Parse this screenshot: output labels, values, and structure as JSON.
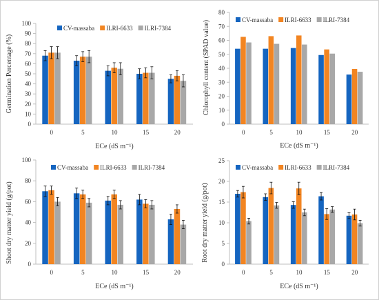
{
  "colors": {
    "series": [
      "#1565c0",
      "#f28522",
      "#a8a8a8"
    ],
    "axis": "#bfbfbf",
    "error_bar": "#111111",
    "frame": "#d0d0d0"
  },
  "chart_data": [
    {
      "type": "bar",
      "title": "",
      "xlabel": "ECe (dS m⁻¹)",
      "ylabel": "Germination Percentage (%)",
      "categories": [
        "0",
        "5",
        "10",
        "15",
        "20"
      ],
      "ylim": [
        0,
        100
      ],
      "yticks": [
        "0",
        "10",
        "20",
        "30",
        "40",
        "50",
        "60",
        "70",
        "80",
        "90",
        "100"
      ],
      "legend_position": "top",
      "error_bars": true,
      "series": [
        {
          "name": "CV-massaba",
          "values": [
            68,
            63,
            53,
            50,
            45
          ],
          "errors": [
            5,
            5,
            5,
            5,
            4
          ]
        },
        {
          "name": "ILRI-6633",
          "values": [
            71,
            67,
            56,
            51,
            48
          ],
          "errors": [
            6,
            5,
            5,
            5,
            5
          ]
        },
        {
          "name": "ILRI-7384",
          "values": [
            71,
            67,
            55,
            51,
            43
          ],
          "errors": [
            6,
            6,
            6,
            6,
            6
          ]
        }
      ]
    },
    {
      "type": "bar",
      "title": "",
      "xlabel": "ECe (dS m⁻¹)",
      "ylabel": "Chlorophyll content (SPAD value)",
      "categories": [
        "0",
        "5",
        "10",
        "15",
        "20"
      ],
      "ylim": [
        0,
        80
      ],
      "yticks": [
        "0",
        "10",
        "20",
        "30",
        "40",
        "50",
        "60",
        "70",
        "80"
      ],
      "legend_position": "top",
      "error_bars": false,
      "series": [
        {
          "name": "CV-massaba",
          "values": [
            54,
            54,
            54.5,
            49.5,
            35.5
          ]
        },
        {
          "name": "ILRI-6633",
          "values": [
            62.5,
            63,
            63.5,
            53.5,
            39.5
          ]
        },
        {
          "name": "ILRI-7384",
          "values": [
            58.5,
            57.5,
            57,
            50.5,
            37.5
          ]
        }
      ]
    },
    {
      "type": "bar",
      "title": "",
      "xlabel": "ECe (dS m⁻¹)",
      "ylabel": "Shoot dry matter yield (g/pot)",
      "categories": [
        "0",
        "5",
        "10",
        "15",
        "20"
      ],
      "ylim": [
        0,
        100
      ],
      "yticks": [
        "0",
        "20",
        "40",
        "60",
        "80",
        "100"
      ],
      "legend_position": "top",
      "error_bars": true,
      "series": [
        {
          "name": "CV-massaba",
          "values": [
            70,
            68,
            61,
            62,
            43
          ],
          "errors": [
            5,
            5,
            4,
            5,
            5
          ]
        },
        {
          "name": "ILRI-6633",
          "values": [
            71,
            67,
            67,
            58,
            53
          ],
          "errors": [
            4,
            4,
            4,
            4,
            4
          ]
        },
        {
          "name": "ILRI-7384",
          "values": [
            60,
            59,
            57,
            57,
            38
          ],
          "errors": [
            4,
            4,
            4,
            4,
            4
          ]
        }
      ]
    },
    {
      "type": "bar",
      "title": "",
      "xlabel": "ECe (dS m⁻¹)",
      "ylabel": "Root dry matter yield (g/pot)",
      "categories": [
        "0",
        "5",
        "10",
        "15",
        "20"
      ],
      "ylim": [
        0,
        25
      ],
      "yticks": [
        "0",
        "5",
        "10",
        "15",
        "20",
        "25"
      ],
      "legend_position": "top",
      "error_bars": true,
      "series": [
        {
          "name": "CV-massaba",
          "values": [
            17,
            16.2,
            14.3,
            16.4,
            11.7
          ],
          "errors": [
            0.8,
            0.8,
            0.8,
            0.9,
            0.7
          ]
        },
        {
          "name": "ILRI-6633",
          "values": [
            17.4,
            18.4,
            18.3,
            12.1,
            12
          ],
          "errors": [
            1.4,
            1.4,
            1.5,
            1.3,
            1.3
          ]
        },
        {
          "name": "ILRI-7384",
          "values": [
            10.4,
            14.2,
            12.5,
            13.2,
            9.9
          ],
          "errors": [
            0.7,
            0.7,
            0.8,
            0.7,
            0.7
          ]
        }
      ]
    }
  ]
}
